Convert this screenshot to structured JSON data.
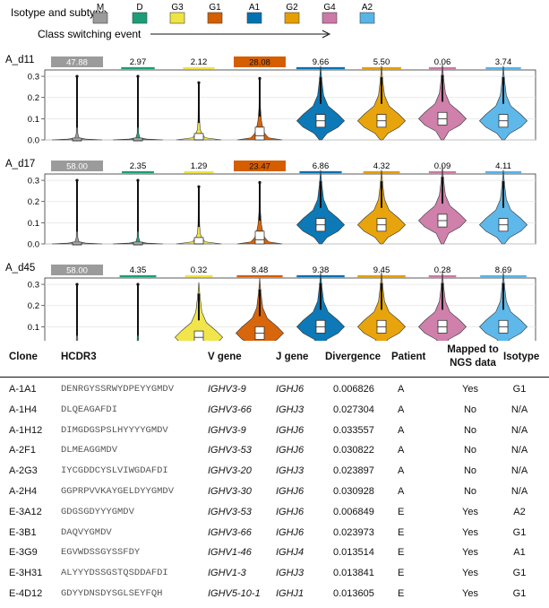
{
  "legend": {
    "title": "Isotype and subtype",
    "arrow_label": "Class switching event",
    "items": [
      {
        "label": "M",
        "color": "#9b9b9b"
      },
      {
        "label": "D",
        "color": "#1b9e77"
      },
      {
        "label": "G3",
        "color": "#f0e442"
      },
      {
        "label": "G1",
        "color": "#d55e00"
      },
      {
        "label": "A1",
        "color": "#0072b2"
      },
      {
        "label": "G2",
        "color": "#e69f00"
      },
      {
        "label": "G4",
        "color": "#cc79a7"
      },
      {
        "label": "A2",
        "color": "#56b4e9"
      }
    ]
  },
  "chart_data": [
    {
      "type": "violin",
      "title": "A_d11",
      "categories": [
        "M",
        "D",
        "G3",
        "G1",
        "A1",
        "G2",
        "G4",
        "A2"
      ],
      "percentages": [
        "47.88",
        "2.97",
        "2.12",
        "28.08",
        "9.66",
        "5.50",
        "0.06",
        "3.74"
      ],
      "percentage_values": [
        47.88,
        2.97,
        2.12,
        28.08,
        9.66,
        5.5,
        0.06,
        3.74
      ],
      "medians": [
        0.0,
        0.0,
        0.0,
        0.02,
        0.09,
        0.09,
        0.1,
        0.09
      ],
      "ylim": [
        0,
        0.33
      ],
      "yticks": [
        "0.0",
        "0.1",
        "0.2",
        "0.3"
      ]
    },
    {
      "type": "violin",
      "title": "A_d17",
      "categories": [
        "M",
        "D",
        "G3",
        "G1",
        "A1",
        "G2",
        "G4",
        "A2"
      ],
      "percentages": [
        "58.00",
        "2.35",
        "1.29",
        "23.47",
        "6.86",
        "4.32",
        "0.09",
        "4.11"
      ],
      "percentage_values": [
        58.0,
        2.35,
        1.29,
        23.47,
        6.86,
        4.32,
        0.09,
        4.11
      ],
      "medians": [
        0.0,
        0.0,
        0.0,
        0.02,
        0.09,
        0.09,
        0.11,
        0.09
      ],
      "ylim": [
        0,
        0.33
      ],
      "yticks": [
        "0.0",
        "0.1",
        "0.2",
        "0.3"
      ]
    },
    {
      "type": "violin",
      "title": "A_d45",
      "categories": [
        "M",
        "D",
        "G3",
        "G1",
        "A1",
        "G2",
        "G4",
        "A2"
      ],
      "percentages": [
        "58.00",
        "4.35",
        "0.32",
        "8.48",
        "9.38",
        "9.45",
        "0.28",
        "8.69"
      ],
      "percentage_values": [
        58.0,
        4.35,
        0.32,
        8.48,
        9.38,
        9.45,
        0.28,
        8.69
      ],
      "medians": [
        0.0,
        0.0,
        0.05,
        0.07,
        0.1,
        0.1,
        0.1,
        0.1
      ],
      "ylim": [
        0,
        0.33
      ],
      "yticks": [
        "0.0",
        "0.1",
        "0.2",
        "0.3"
      ]
    }
  ],
  "table": {
    "headers": {
      "clone": "Clone",
      "hcdr3": "HCDR3",
      "vgene": "V gene",
      "jgene": "J gene",
      "divergence": "Divergence",
      "patient": "Patient",
      "mapped_line1": "Mapped to",
      "mapped_line2": "NGS data",
      "isotype": "Isotype"
    },
    "rows": [
      {
        "clone": "A-1A1",
        "hcdr3": "DENRGYSSRWYDPEYYGMDV",
        "vgene": "IGHV3-9",
        "jgene": "IGHJ6",
        "divergence": "0.006826",
        "patient": "A",
        "mapped": "Yes",
        "isotype": "G1"
      },
      {
        "clone": "A-1H4",
        "hcdr3": "DLQEAGAFDI",
        "vgene": "IGHV3-66",
        "jgene": "IGHJ3",
        "divergence": "0.027304",
        "patient": "A",
        "mapped": "No",
        "isotype": "N/A"
      },
      {
        "clone": "A-1H12",
        "hcdr3": "DIMGDGSPSLHYYYYGMDV",
        "vgene": "IGHV3-9",
        "jgene": "IGHJ6",
        "divergence": "0.033557",
        "patient": "A",
        "mapped": "No",
        "isotype": "N/A"
      },
      {
        "clone": "A-2F1",
        "hcdr3": "DLMEAGGMDV",
        "vgene": "IGHV3-53",
        "jgene": "IGHJ6",
        "divergence": "0.030822",
        "patient": "A",
        "mapped": "No",
        "isotype": "N/A"
      },
      {
        "clone": "A-2G3",
        "hcdr3": "IYCGDDCYSLVIWGDAFDI",
        "vgene": "IGHV3-20",
        "jgene": "IGHJ3",
        "divergence": "0.023897",
        "patient": "A",
        "mapped": "No",
        "isotype": "N/A"
      },
      {
        "clone": "A-2H4",
        "hcdr3": "GGPRPVVKAYGELDYYGMDV",
        "vgene": "IGHV3-30",
        "jgene": "IGHJ6",
        "divergence": "0.030928",
        "patient": "A",
        "mapped": "No",
        "isotype": "N/A"
      },
      {
        "clone": "E-3A12",
        "hcdr3": "GDGSGDYYYGMDV",
        "vgene": "IGHV3-53",
        "jgene": "IGHJ6",
        "divergence": "0.006849",
        "patient": "E",
        "mapped": "Yes",
        "isotype": "A2"
      },
      {
        "clone": "E-3B1",
        "hcdr3": "DAQVYGMDV",
        "vgene": "IGHV3-66",
        "jgene": "IGHJ6",
        "divergence": "0.023973",
        "patient": "E",
        "mapped": "Yes",
        "isotype": "G1"
      },
      {
        "clone": "E-3G9",
        "hcdr3": "EGVWDSSGYSSFDY",
        "vgene": "IGHV1-46",
        "jgene": "IGHJ4",
        "divergence": "0.013514",
        "patient": "E",
        "mapped": "Yes",
        "isotype": "A1"
      },
      {
        "clone": "E-3H31",
        "hcdr3": "ALYYYDSSGSTQSDDAFDI",
        "vgene": "IGHV1-3",
        "jgene": "IGHJ3",
        "divergence": "0.013841",
        "patient": "E",
        "mapped": "Yes",
        "isotype": "G1"
      },
      {
        "clone": "E-4D12",
        "hcdr3": "GDYYDNSDYSGLSEYFQH",
        "vgene": "IGHV5-10-1",
        "jgene": "IGHJ1",
        "divergence": "0.013605",
        "patient": "E",
        "mapped": "Yes",
        "isotype": "G1"
      }
    ]
  }
}
